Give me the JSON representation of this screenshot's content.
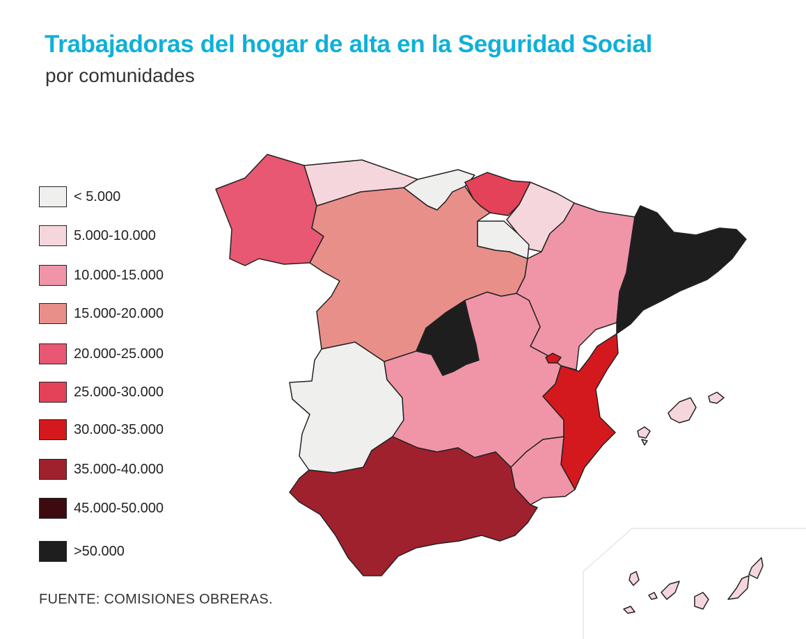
{
  "title": "Trabajadoras del hogar de alta en la Seguridad Social",
  "subtitle": "por comunidades",
  "source": "FUENTE: COMISIONES OBRERAS.",
  "legend": [
    {
      "label": "< 5.000",
      "color": "#efefee"
    },
    {
      "label": "5.000-10.000",
      "color": "#f6d6dd"
    },
    {
      "label": "10.000-15.000",
      "color": "#f095a8"
    },
    {
      "label": "15.000-20.000",
      "color": "#e98f8a"
    },
    {
      "label": "20.000-25.000",
      "color": "#e85872"
    },
    {
      "label": "25.000-30.000",
      "color": "#e44258"
    },
    {
      "label": "30.000-35.000",
      "color": "#d4191e"
    },
    {
      "label": "35.000-40.000",
      "color": "#a0212e"
    },
    {
      "label": "45.000-50.000",
      "color": "#3d0b0f"
    },
    {
      "label": ">50.000",
      "color": "#1e1e1e"
    }
  ],
  "regions": [
    {
      "id": "galicia",
      "bin": "20.000-25.000"
    },
    {
      "id": "asturias",
      "bin": "5.000-10.000"
    },
    {
      "id": "cantabria",
      "bin": "< 5.000"
    },
    {
      "id": "pais-vasco",
      "bin": "25.000-30.000"
    },
    {
      "id": "navarra",
      "bin": "5.000-10.000"
    },
    {
      "id": "la-rioja",
      "bin": "< 5.000"
    },
    {
      "id": "castilla-y-leon",
      "bin": "15.000-20.000"
    },
    {
      "id": "aragon",
      "bin": "10.000-15.000"
    },
    {
      "id": "cataluna",
      "bin": ">50.000"
    },
    {
      "id": "madrid",
      "bin": ">50.000"
    },
    {
      "id": "extremadura",
      "bin": "< 5.000"
    },
    {
      "id": "castilla-la-mancha",
      "bin": "10.000-15.000"
    },
    {
      "id": "comunidad-valenciana",
      "bin": "30.000-35.000"
    },
    {
      "id": "murcia",
      "bin": "10.000-15.000"
    },
    {
      "id": "andalucia",
      "bin": "35.000-40.000"
    },
    {
      "id": "islas-baleares",
      "bin": "5.000-10.000"
    },
    {
      "id": "islas-canarias",
      "bin": "5.000-10.000"
    }
  ]
}
